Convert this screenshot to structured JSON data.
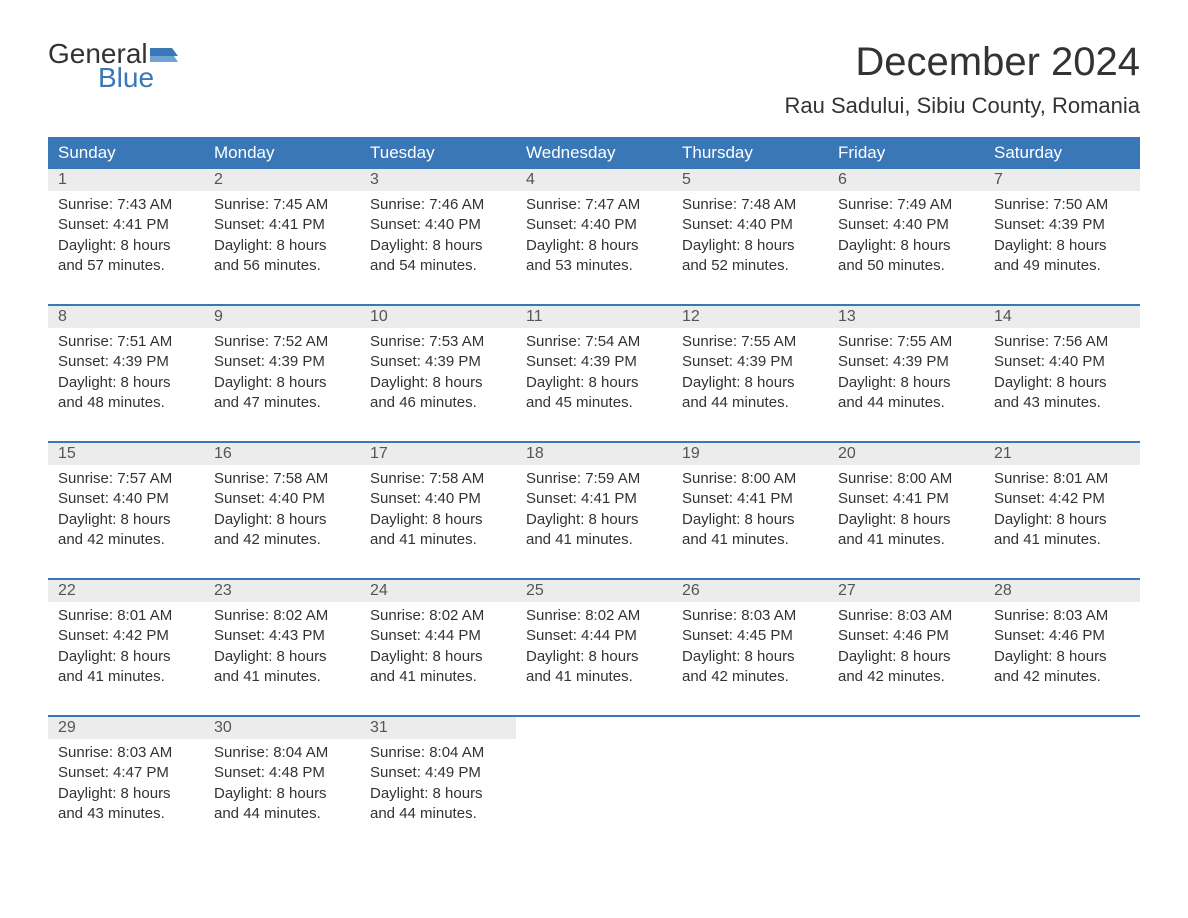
{
  "brand": {
    "word1": "General",
    "word2": "Blue"
  },
  "title": "December 2024",
  "location": "Rau Sadului, Sibiu County, Romania",
  "colors": {
    "header_bg": "#3a77b7",
    "header_text": "#ffffff",
    "daynum_bg": "#ececec",
    "line": "#3a77b7",
    "text": "#333333",
    "page_bg": "#ffffff"
  },
  "font": {
    "family": "Arial",
    "title_size_pt": 30,
    "location_size_pt": 17,
    "header_size_pt": 13,
    "body_size_pt": 11
  },
  "day_headers": [
    "Sunday",
    "Monday",
    "Tuesday",
    "Wednesday",
    "Thursday",
    "Friday",
    "Saturday"
  ],
  "weeks": [
    [
      {
        "n": "1",
        "sr": "Sunrise: 7:43 AM",
        "ss": "Sunset: 4:41 PM",
        "d1": "Daylight: 8 hours",
        "d2": "and 57 minutes."
      },
      {
        "n": "2",
        "sr": "Sunrise: 7:45 AM",
        "ss": "Sunset: 4:41 PM",
        "d1": "Daylight: 8 hours",
        "d2": "and 56 minutes."
      },
      {
        "n": "3",
        "sr": "Sunrise: 7:46 AM",
        "ss": "Sunset: 4:40 PM",
        "d1": "Daylight: 8 hours",
        "d2": "and 54 minutes."
      },
      {
        "n": "4",
        "sr": "Sunrise: 7:47 AM",
        "ss": "Sunset: 4:40 PM",
        "d1": "Daylight: 8 hours",
        "d2": "and 53 minutes."
      },
      {
        "n": "5",
        "sr": "Sunrise: 7:48 AM",
        "ss": "Sunset: 4:40 PM",
        "d1": "Daylight: 8 hours",
        "d2": "and 52 minutes."
      },
      {
        "n": "6",
        "sr": "Sunrise: 7:49 AM",
        "ss": "Sunset: 4:40 PM",
        "d1": "Daylight: 8 hours",
        "d2": "and 50 minutes."
      },
      {
        "n": "7",
        "sr": "Sunrise: 7:50 AM",
        "ss": "Sunset: 4:39 PM",
        "d1": "Daylight: 8 hours",
        "d2": "and 49 minutes."
      }
    ],
    [
      {
        "n": "8",
        "sr": "Sunrise: 7:51 AM",
        "ss": "Sunset: 4:39 PM",
        "d1": "Daylight: 8 hours",
        "d2": "and 48 minutes."
      },
      {
        "n": "9",
        "sr": "Sunrise: 7:52 AM",
        "ss": "Sunset: 4:39 PM",
        "d1": "Daylight: 8 hours",
        "d2": "and 47 minutes."
      },
      {
        "n": "10",
        "sr": "Sunrise: 7:53 AM",
        "ss": "Sunset: 4:39 PM",
        "d1": "Daylight: 8 hours",
        "d2": "and 46 minutes."
      },
      {
        "n": "11",
        "sr": "Sunrise: 7:54 AM",
        "ss": "Sunset: 4:39 PM",
        "d1": "Daylight: 8 hours",
        "d2": "and 45 minutes."
      },
      {
        "n": "12",
        "sr": "Sunrise: 7:55 AM",
        "ss": "Sunset: 4:39 PM",
        "d1": "Daylight: 8 hours",
        "d2": "and 44 minutes."
      },
      {
        "n": "13",
        "sr": "Sunrise: 7:55 AM",
        "ss": "Sunset: 4:39 PM",
        "d1": "Daylight: 8 hours",
        "d2": "and 44 minutes."
      },
      {
        "n": "14",
        "sr": "Sunrise: 7:56 AM",
        "ss": "Sunset: 4:40 PM",
        "d1": "Daylight: 8 hours",
        "d2": "and 43 minutes."
      }
    ],
    [
      {
        "n": "15",
        "sr": "Sunrise: 7:57 AM",
        "ss": "Sunset: 4:40 PM",
        "d1": "Daylight: 8 hours",
        "d2": "and 42 minutes."
      },
      {
        "n": "16",
        "sr": "Sunrise: 7:58 AM",
        "ss": "Sunset: 4:40 PM",
        "d1": "Daylight: 8 hours",
        "d2": "and 42 minutes."
      },
      {
        "n": "17",
        "sr": "Sunrise: 7:58 AM",
        "ss": "Sunset: 4:40 PM",
        "d1": "Daylight: 8 hours",
        "d2": "and 41 minutes."
      },
      {
        "n": "18",
        "sr": "Sunrise: 7:59 AM",
        "ss": "Sunset: 4:41 PM",
        "d1": "Daylight: 8 hours",
        "d2": "and 41 minutes."
      },
      {
        "n": "19",
        "sr": "Sunrise: 8:00 AM",
        "ss": "Sunset: 4:41 PM",
        "d1": "Daylight: 8 hours",
        "d2": "and 41 minutes."
      },
      {
        "n": "20",
        "sr": "Sunrise: 8:00 AM",
        "ss": "Sunset: 4:41 PM",
        "d1": "Daylight: 8 hours",
        "d2": "and 41 minutes."
      },
      {
        "n": "21",
        "sr": "Sunrise: 8:01 AM",
        "ss": "Sunset: 4:42 PM",
        "d1": "Daylight: 8 hours",
        "d2": "and 41 minutes."
      }
    ],
    [
      {
        "n": "22",
        "sr": "Sunrise: 8:01 AM",
        "ss": "Sunset: 4:42 PM",
        "d1": "Daylight: 8 hours",
        "d2": "and 41 minutes."
      },
      {
        "n": "23",
        "sr": "Sunrise: 8:02 AM",
        "ss": "Sunset: 4:43 PM",
        "d1": "Daylight: 8 hours",
        "d2": "and 41 minutes."
      },
      {
        "n": "24",
        "sr": "Sunrise: 8:02 AM",
        "ss": "Sunset: 4:44 PM",
        "d1": "Daylight: 8 hours",
        "d2": "and 41 minutes."
      },
      {
        "n": "25",
        "sr": "Sunrise: 8:02 AM",
        "ss": "Sunset: 4:44 PM",
        "d1": "Daylight: 8 hours",
        "d2": "and 41 minutes."
      },
      {
        "n": "26",
        "sr": "Sunrise: 8:03 AM",
        "ss": "Sunset: 4:45 PM",
        "d1": "Daylight: 8 hours",
        "d2": "and 42 minutes."
      },
      {
        "n": "27",
        "sr": "Sunrise: 8:03 AM",
        "ss": "Sunset: 4:46 PM",
        "d1": "Daylight: 8 hours",
        "d2": "and 42 minutes."
      },
      {
        "n": "28",
        "sr": "Sunrise: 8:03 AM",
        "ss": "Sunset: 4:46 PM",
        "d1": "Daylight: 8 hours",
        "d2": "and 42 minutes."
      }
    ],
    [
      {
        "n": "29",
        "sr": "Sunrise: 8:03 AM",
        "ss": "Sunset: 4:47 PM",
        "d1": "Daylight: 8 hours",
        "d2": "and 43 minutes."
      },
      {
        "n": "30",
        "sr": "Sunrise: 8:04 AM",
        "ss": "Sunset: 4:48 PM",
        "d1": "Daylight: 8 hours",
        "d2": "and 44 minutes."
      },
      {
        "n": "31",
        "sr": "Sunrise: 8:04 AM",
        "ss": "Sunset: 4:49 PM",
        "d1": "Daylight: 8 hours",
        "d2": "and 44 minutes."
      },
      null,
      null,
      null,
      null
    ]
  ]
}
